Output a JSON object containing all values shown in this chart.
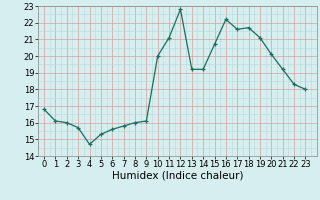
{
  "x": [
    0,
    1,
    2,
    3,
    4,
    5,
    6,
    7,
    8,
    9,
    10,
    11,
    12,
    13,
    14,
    15,
    16,
    17,
    18,
    19,
    20,
    21,
    22,
    23
  ],
  "y": [
    16.8,
    16.1,
    16.0,
    15.7,
    14.7,
    15.3,
    15.6,
    15.8,
    16.0,
    16.1,
    20.0,
    21.1,
    22.8,
    19.2,
    19.2,
    20.7,
    22.2,
    21.6,
    21.7,
    21.1,
    20.1,
    19.2,
    18.3,
    18.0
  ],
  "xlabel": "Humidex (Indice chaleur)",
  "xlim": [
    -0.5,
    23.5
  ],
  "ylim": [
    14,
    23
  ],
  "yticks": [
    14,
    15,
    16,
    17,
    18,
    19,
    20,
    21,
    22,
    23
  ],
  "xticks": [
    0,
    1,
    2,
    3,
    4,
    5,
    6,
    7,
    8,
    9,
    10,
    11,
    12,
    13,
    14,
    15,
    16,
    17,
    18,
    19,
    20,
    21,
    22,
    23
  ],
  "line_color": "#1a6e62",
  "bg_color": "#d6eeee",
  "minor_grid_color": "#b8d8d8",
  "major_grid_color": "#d4a0a0",
  "tick_fontsize": 6,
  "xlabel_fontsize": 7.5,
  "linewidth": 0.9,
  "markersize": 3.5
}
